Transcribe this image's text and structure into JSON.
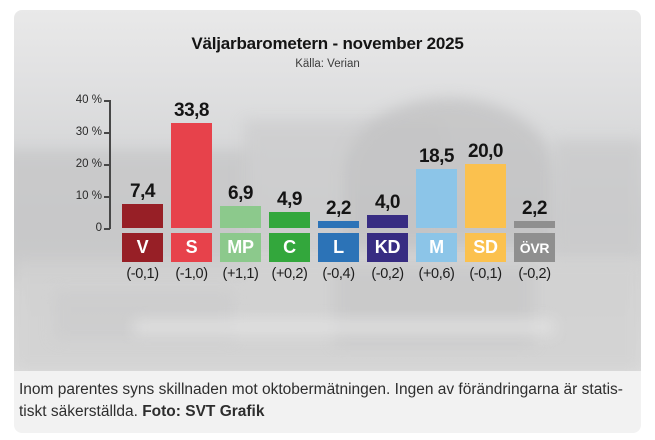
{
  "header": {
    "title": "Väljarbarometern - november 2025",
    "source": "Källa: Verian"
  },
  "chart_data": {
    "type": "bar",
    "title": "Väljarbarometern - november 2025",
    "subtitle": "Källa: Verian",
    "categories": [
      "V",
      "S",
      "MP",
      "C",
      "L",
      "KD",
      "M",
      "SD",
      "ÖVR"
    ],
    "values": [
      7.4,
      33.8,
      6.9,
      4.9,
      2.2,
      4.0,
      18.5,
      20.0,
      2.2
    ],
    "value_labels": [
      "7,4",
      "33,8",
      "6,9",
      "4,9",
      "2,2",
      "4,0",
      "18,5",
      "20,0",
      "2,2"
    ],
    "changes": [
      "(-0,1)",
      "(-1,0)",
      "(+1,1)",
      "(+0,2)",
      "(-0,4)",
      "(-0,2)",
      "(+0,6)",
      "(-0,1)",
      "(-0,2)"
    ],
    "bar_colors": [
      "#971F26",
      "#E7424B",
      "#8CC98C",
      "#33A73C",
      "#2C73B7",
      "#372C82",
      "#8CC5E8",
      "#FBC14E",
      "#8F8F8F"
    ],
    "label_text_color": "#ffffff",
    "xlabel": "",
    "ylabel": "",
    "ylim": [
      0,
      40
    ],
    "ytick_labels": [
      "40 %",
      "30 %",
      "20 %",
      "10 %",
      "0"
    ],
    "ytick_values": [
      40,
      30,
      20,
      10,
      0
    ],
    "grid": false,
    "legend_position": "none"
  },
  "caption": {
    "line1": "Inom parentes syns skillnaden mot oktobermätningen. Ingen av förändringarna är statis-",
    "line2": "tiskt säkerställda.",
    "credit": "Foto: SVT Grafik"
  }
}
